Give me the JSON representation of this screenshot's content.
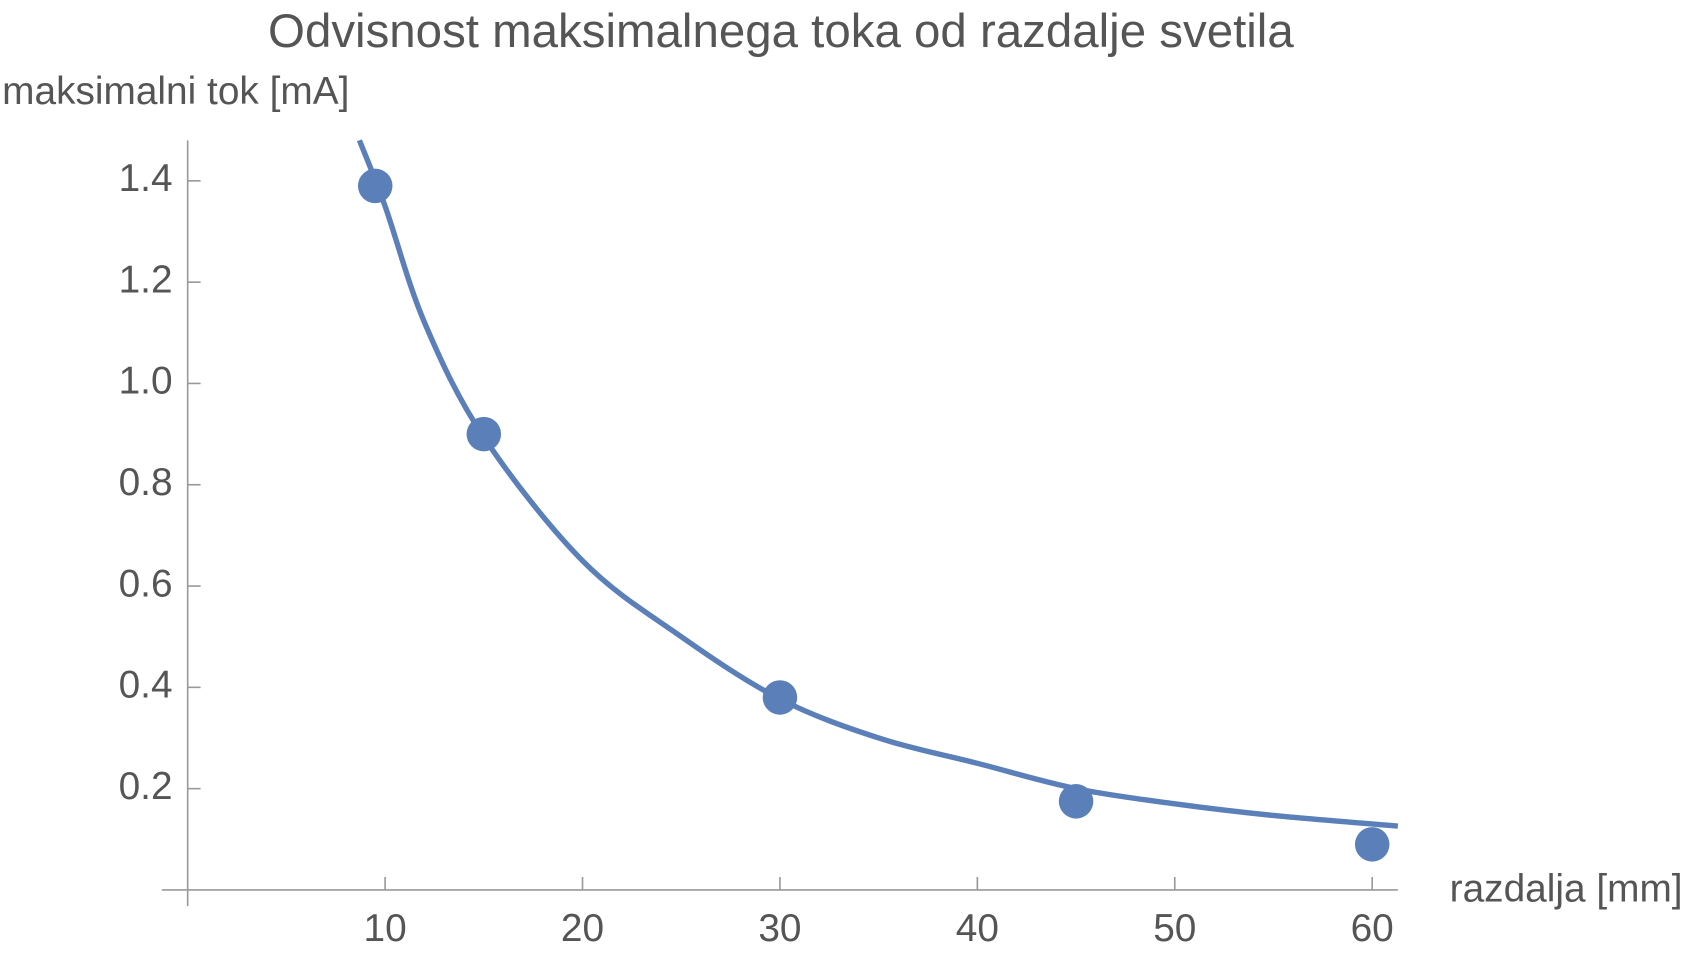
{
  "chart_data": {
    "type": "scatter",
    "title": "Odvisnost maksimalnega toka od razdalje svetila",
    "x_label": "razdalja [mm]",
    "y_label": "maksimalni tok [mA]",
    "xlim": [
      0,
      61.3
    ],
    "ylim": [
      0,
      1.48
    ],
    "xticks": [
      10,
      20,
      30,
      40,
      50,
      60
    ],
    "yticks": [
      0.2,
      0.4,
      0.6,
      0.8,
      {
        "value": 1,
        "label": "1.0"
      },
      1.2,
      1.4
    ],
    "series": [
      {
        "type": "scatter",
        "color": "#5b7fb8",
        "x": [
          9.5,
          15,
          30,
          45,
          60
        ],
        "values": [
          1.39,
          0.9,
          0.38,
          0.175,
          0.09
        ]
      },
      {
        "type": "line",
        "color": "#5b7fb8",
        "x": [
          8.7,
          10,
          12,
          15,
          20,
          25,
          30,
          35,
          40,
          45,
          50,
          55,
          61.3
        ],
        "values": [
          1.48,
          1.35,
          1.12,
          0.894,
          0.65,
          0.5,
          0.377,
          0.3,
          0.25,
          0.2,
          0.17,
          0.147,
          0.126
        ]
      }
    ]
  }
}
